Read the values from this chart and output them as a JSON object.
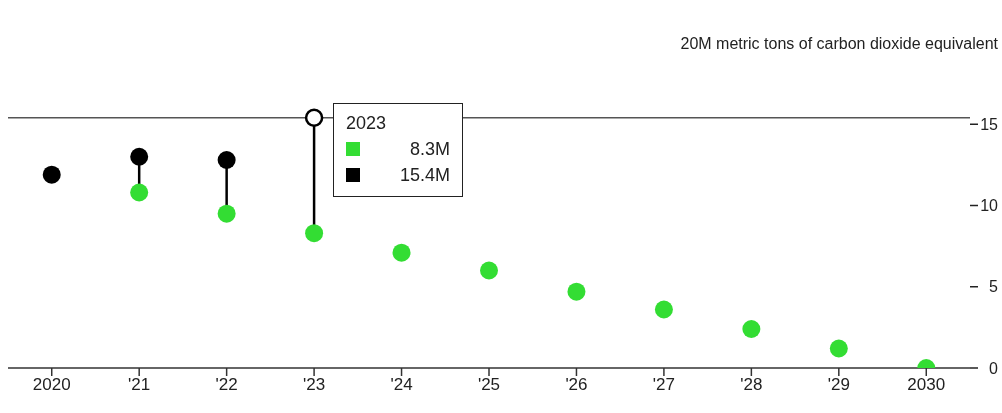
{
  "chart_data": {
    "type": "scatter",
    "categories": [
      "2020",
      "'21",
      "'22",
      "'23",
      "'24",
      "'25",
      "'26",
      "'27",
      "'28",
      "'29",
      "2030"
    ],
    "series": [
      {
        "color": "#33dd33",
        "values": [
          null,
          10.8,
          9.5,
          8.3,
          7.1,
          6.0,
          4.7,
          3.6,
          2.4,
          1.2,
          0
        ]
      },
      {
        "color": "#000000",
        "values": [
          11.9,
          13.0,
          12.8,
          15.4,
          null,
          null,
          null,
          null,
          null,
          null,
          null
        ]
      }
    ],
    "ylim": [
      0,
      20
    ],
    "yticks": [
      0,
      5,
      10,
      15,
      {
        "value": 20,
        "label": "20M metric tons of carbon dioxide equivalent"
      }
    ],
    "ref_lines": [
      {
        "axis": "y",
        "value": 15.4,
        "color": "#555555"
      }
    ],
    "annotations": [
      "2023",
      "8.3M",
      "15.4M"
    ],
    "marker": "circle"
  }
}
